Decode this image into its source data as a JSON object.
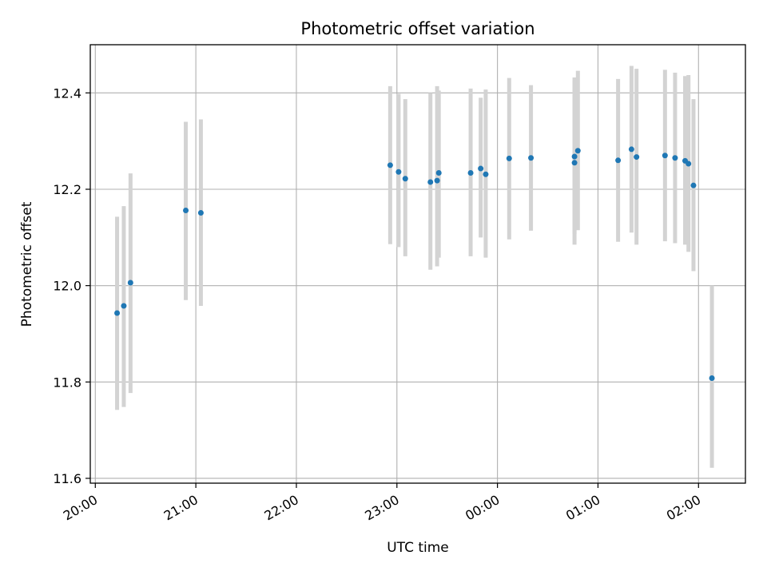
{
  "chart_data": {
    "type": "scatter",
    "title": "Photometric offset variation",
    "xlabel": "UTC time",
    "ylabel": "Photometric offset",
    "ylim": [
      11.59,
      12.5
    ],
    "xlim": [
      "2000-01-01T19:57",
      "2000-01-02T02:28"
    ],
    "yticks": [
      11.6,
      11.8,
      12.0,
      12.2,
      12.4
    ],
    "ytick_labels": [
      "11.6",
      "11.8",
      "12.0",
      "12.2",
      "12.4"
    ],
    "xticks": [
      "2000-01-01T20:00",
      "2000-01-01T21:00",
      "2000-01-01T22:00",
      "2000-01-01T23:00",
      "2000-01-02T00:00",
      "2000-01-02T01:00",
      "2000-01-02T02:00"
    ],
    "xtick_labels": [
      "20:00",
      "21:00",
      "22:00",
      "23:00",
      "00:00",
      "01:00",
      "02:00"
    ],
    "grid": true,
    "marker_color": "#1f77b4",
    "errorbar_color": "#d3d3d3",
    "points": [
      {
        "t": "2000-01-01T20:13",
        "y": 11.943,
        "lo": 11.742,
        "hi": 12.143
      },
      {
        "t": "2000-01-01T20:17",
        "y": 11.958,
        "lo": 11.748,
        "hi": 12.165
      },
      {
        "t": "2000-01-01T20:21",
        "y": 12.006,
        "lo": 11.777,
        "hi": 12.233
      },
      {
        "t": "2000-01-01T20:54",
        "y": 12.156,
        "lo": 11.97,
        "hi": 12.34
      },
      {
        "t": "2000-01-01T21:03",
        "y": 12.151,
        "lo": 11.958,
        "hi": 12.345
      },
      {
        "t": "2000-01-01T22:56",
        "y": 12.25,
        "lo": 12.086,
        "hi": 12.414
      },
      {
        "t": "2000-01-01T23:01",
        "y": 12.236,
        "lo": 12.08,
        "hi": 12.398
      },
      {
        "t": "2000-01-01T23:05",
        "y": 12.222,
        "lo": 12.061,
        "hi": 12.387
      },
      {
        "t": "2000-01-01T23:20",
        "y": 12.215,
        "lo": 12.033,
        "hi": 12.4
      },
      {
        "t": "2000-01-01T23:24",
        "y": 12.218,
        "lo": 12.04,
        "hi": 12.414
      },
      {
        "t": "2000-01-01T23:25",
        "y": 12.234,
        "lo": 12.058,
        "hi": 12.405
      },
      {
        "t": "2000-01-01T23:44",
        "y": 12.234,
        "lo": 12.061,
        "hi": 12.409
      },
      {
        "t": "2000-01-01T23:50",
        "y": 12.243,
        "lo": 12.1,
        "hi": 12.39
      },
      {
        "t": "2000-01-01T23:53",
        "y": 12.231,
        "lo": 12.058,
        "hi": 12.407
      },
      {
        "t": "2000-01-02T00:07",
        "y": 12.264,
        "lo": 12.096,
        "hi": 12.431
      },
      {
        "t": "2000-01-02T00:20",
        "y": 12.265,
        "lo": 12.114,
        "hi": 12.416
      },
      {
        "t": "2000-01-02T00:46",
        "y": 12.268,
        "lo": 12.107,
        "hi": 12.432
      },
      {
        "t": "2000-01-02T00:46",
        "y": 12.255,
        "lo": 12.085,
        "hi": 12.425
      },
      {
        "t": "2000-01-02T00:48",
        "y": 12.28,
        "lo": 12.115,
        "hi": 12.446
      },
      {
        "t": "2000-01-02T01:12",
        "y": 12.26,
        "lo": 12.091,
        "hi": 12.429
      },
      {
        "t": "2000-01-02T01:20",
        "y": 12.283,
        "lo": 12.11,
        "hi": 12.456
      },
      {
        "t": "2000-01-02T01:23",
        "y": 12.267,
        "lo": 12.085,
        "hi": 12.45
      },
      {
        "t": "2000-01-02T01:40",
        "y": 12.27,
        "lo": 12.092,
        "hi": 12.448
      },
      {
        "t": "2000-01-02T01:46",
        "y": 12.265,
        "lo": 12.088,
        "hi": 12.442
      },
      {
        "t": "2000-01-02T01:52",
        "y": 12.259,
        "lo": 12.085,
        "hi": 12.435
      },
      {
        "t": "2000-01-02T01:54",
        "y": 12.253,
        "lo": 12.07,
        "hi": 12.437
      },
      {
        "t": "2000-01-02T01:57",
        "y": 12.208,
        "lo": 12.03,
        "hi": 12.387
      },
      {
        "t": "2000-01-02T02:08",
        "y": 11.808,
        "lo": 11.622,
        "hi": 12.0
      }
    ]
  }
}
